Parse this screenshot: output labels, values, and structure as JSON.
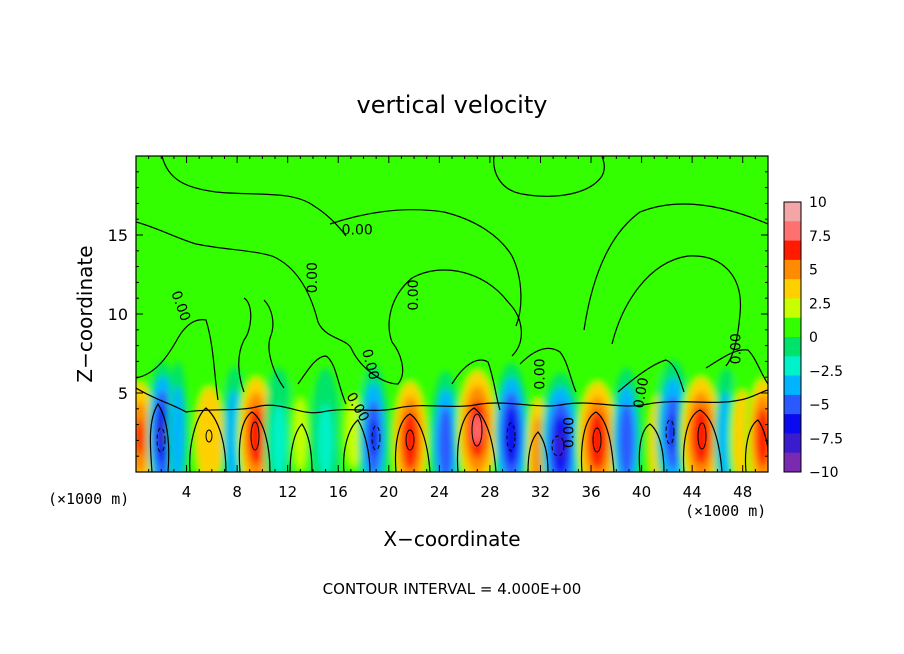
{
  "chart_data": {
    "type": "heatmap",
    "title": "vertical velocity",
    "xlabel": "X−coordinate",
    "ylabel": "Z−coordinate",
    "x_unit_left": "(×1000 m)",
    "x_unit_right": "(×1000 m)",
    "xlim": [
      0,
      50
    ],
    "ylim": [
      0,
      20
    ],
    "x_ticks": [
      4,
      8,
      12,
      16,
      20,
      24,
      28,
      32,
      36,
      40,
      44,
      48
    ],
    "y_ticks": [
      5,
      10,
      15
    ],
    "footer": "CONTOUR INTERVAL = 4.000E+00",
    "contour_label": "0.00",
    "contour_labels": [
      {
        "text": "0.00",
        "x": 17.5,
        "z": 15.3,
        "rot": 0
      },
      {
        "text": "0.00",
        "x": 14.0,
        "z": 12.3,
        "rot": -90
      },
      {
        "text": "0.00",
        "x": 3.5,
        "z": 10.5,
        "rot": 70
      },
      {
        "text": "0.00",
        "x": 22.0,
        "z": 11.2,
        "rot": -90
      },
      {
        "text": "0.00",
        "x": 18.5,
        "z": 6.8,
        "rot": 75
      },
      {
        "text": "0.00",
        "x": 17.5,
        "z": 4.1,
        "rot": 60
      },
      {
        "text": "0.00",
        "x": 32.0,
        "z": 6.2,
        "rot": -90
      },
      {
        "text": "0.00",
        "x": 34.3,
        "z": 2.5,
        "rot": -90
      },
      {
        "text": "0.00",
        "x": 40.0,
        "z": 5.0,
        "rot": -80
      },
      {
        "text": "0.00",
        "x": 47.5,
        "z": 7.8,
        "rot": -90
      }
    ],
    "colorbar": {
      "min": -10,
      "max": 10,
      "ticks": [
        "10",
        "7.5",
        "5",
        "2.5",
        "0",
        "−2.5",
        "−5",
        "−7.5",
        "−10"
      ],
      "colors": [
        "#f2a6a6",
        "#ff7070",
        "#ff1a00",
        "#ff8c00",
        "#ffd000",
        "#c8ff00",
        "#33ff00",
        "#00e36a",
        "#00f2c8",
        "#00b4ff",
        "#2a5aff",
        "#0a0af0",
        "#3a1ccc",
        "#7a2ab0"
      ]
    },
    "cells": [
      {
        "x": 0.3,
        "z": 2.2,
        "w": 0.7,
        "v": 6
      },
      {
        "x": 2.1,
        "z": 2.4,
        "w": 0.6,
        "v": -8
      },
      {
        "x": 3.3,
        "z": 2.4,
        "w": 0.4,
        "v": -4
      },
      {
        "x": 5.8,
        "z": 2.3,
        "w": 0.8,
        "v": 4
      },
      {
        "x": 7.8,
        "z": 2.1,
        "w": 0.5,
        "v": -3
      },
      {
        "x": 9.5,
        "z": 2.3,
        "w": 0.8,
        "v": 7
      },
      {
        "x": 11.3,
        "z": 2.0,
        "w": 0.6,
        "v": -2
      },
      {
        "x": 13.0,
        "z": 2.4,
        "w": 0.5,
        "v": 2
      },
      {
        "x": 15.0,
        "z": 2.0,
        "w": 0.6,
        "v": -2
      },
      {
        "x": 17.2,
        "z": 2.6,
        "w": 0.6,
        "v": 2
      },
      {
        "x": 18.8,
        "z": 2.2,
        "w": 0.6,
        "v": -6
      },
      {
        "x": 21.7,
        "z": 2.0,
        "w": 0.8,
        "v": 7
      },
      {
        "x": 24.5,
        "z": 1.8,
        "w": 0.6,
        "v": -5
      },
      {
        "x": 27.0,
        "z": 2.7,
        "w": 0.9,
        "v": 8
      },
      {
        "x": 29.7,
        "z": 2.3,
        "w": 0.7,
        "v": -7
      },
      {
        "x": 31.8,
        "z": 1.2,
        "w": 0.5,
        "v": 5
      },
      {
        "x": 33.6,
        "z": 1.7,
        "w": 0.8,
        "v": -8
      },
      {
        "x": 36.5,
        "z": 2.0,
        "w": 0.9,
        "v": 7
      },
      {
        "x": 38.8,
        "z": 2.0,
        "w": 0.6,
        "v": -5
      },
      {
        "x": 41.4,
        "z": 1.9,
        "w": 0.6,
        "v": 3
      },
      {
        "x": 42.5,
        "z": 2.5,
        "w": 0.7,
        "v": -6
      },
      {
        "x": 44.7,
        "z": 2.3,
        "w": 0.9,
        "v": 7
      },
      {
        "x": 46.7,
        "z": 2.0,
        "w": 0.5,
        "v": -3
      },
      {
        "x": 48.0,
        "z": 2.1,
        "w": 0.6,
        "v": 3
      },
      {
        "x": 49.6,
        "z": 2.2,
        "w": 0.7,
        "v": 7
      }
    ]
  }
}
